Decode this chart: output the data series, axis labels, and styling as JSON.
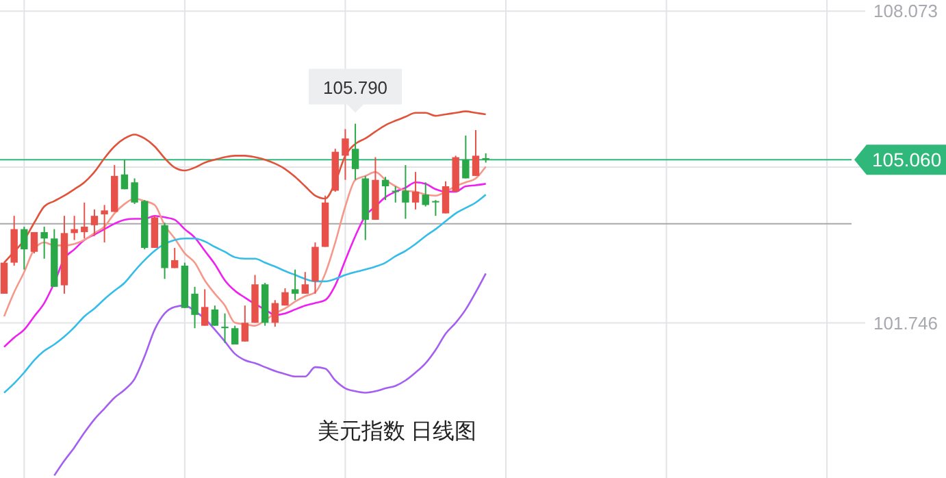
{
  "chart_data": {
    "type": "candlestick",
    "title": "美元指数  日线图",
    "categories": [
      null,
      null,
      null,
      null,
      null,
      null,
      null,
      null,
      null,
      null,
      null,
      null,
      null,
      null,
      null,
      null,
      null,
      null,
      null,
      null,
      null,
      null,
      null,
      null,
      null,
      null,
      null,
      null,
      null,
      null,
      null,
      null,
      null,
      null,
      null,
      null,
      null,
      null,
      null,
      null,
      null,
      null,
      null,
      null,
      null,
      null,
      null,
      null,
      null
    ],
    "ohlc": [
      [
        102.34,
        102.97,
        102.34,
        102.97
      ],
      [
        102.97,
        103.92,
        102.91,
        103.65
      ],
      [
        103.65,
        103.7,
        102.83,
        103.24
      ],
      [
        103.19,
        103.59,
        103.16,
        103.59
      ],
      [
        103.59,
        103.7,
        103.05,
        103.46
      ],
      [
        103.46,
        103.65,
        102.48,
        102.48
      ],
      [
        102.51,
        103.92,
        102.34,
        103.57
      ],
      [
        103.57,
        103.92,
        103.43,
        103.65
      ],
      [
        103.59,
        104.19,
        103.46,
        103.7
      ],
      [
        103.73,
        104.05,
        103.51,
        103.92
      ],
      [
        103.95,
        104.14,
        103.38,
        104.03
      ],
      [
        104.0,
        104.95,
        104.0,
        104.73
      ],
      [
        104.76,
        105.06,
        104.46,
        104.46
      ],
      [
        104.6,
        104.68,
        104.16,
        104.19
      ],
      [
        104.22,
        104.24,
        103.24,
        103.27
      ],
      [
        103.27,
        103.92,
        103.27,
        103.89
      ],
      [
        103.73,
        103.78,
        102.64,
        102.86
      ],
      [
        102.86,
        103.27,
        102.86,
        103.02
      ],
      [
        102.91,
        102.97,
        102.05,
        102.05
      ],
      [
        102.34,
        102.48,
        101.64,
        101.91
      ],
      [
        101.69,
        102.43,
        101.69,
        102.07
      ],
      [
        102.02,
        102.1,
        101.69,
        101.69
      ],
      [
        101.67,
        101.94,
        101.34,
        101.64
      ],
      [
        101.64,
        101.69,
        101.31,
        101.31
      ],
      [
        101.37,
        102.1,
        101.37,
        101.75
      ],
      [
        101.75,
        102.72,
        101.75,
        102.53
      ],
      [
        102.53,
        102.56,
        101.69,
        101.75
      ],
      [
        101.75,
        102.21,
        101.67,
        102.15
      ],
      [
        102.1,
        102.45,
        102.1,
        102.37
      ],
      [
        102.43,
        102.83,
        102.21,
        102.34
      ],
      [
        102.34,
        102.78,
        102.34,
        102.53
      ],
      [
        102.59,
        103.38,
        102.34,
        103.29
      ],
      [
        103.29,
        104.33,
        103.29,
        104.19
      ],
      [
        104.43,
        105.28,
        104.41,
        105.22
      ],
      [
        105.14,
        105.68,
        104.65,
        105.49
      ],
      [
        105.28,
        105.79,
        104.65,
        104.87
      ],
      [
        104.68,
        104.73,
        103.43,
        103.84
      ],
      [
        103.84,
        105.11,
        103.84,
        104.65
      ],
      [
        104.65,
        104.71,
        104.24,
        104.52
      ],
      [
        104.43,
        104.52,
        104.19,
        104.41
      ],
      [
        104.43,
        104.95,
        103.86,
        104.19
      ],
      [
        104.19,
        104.81,
        104.05,
        104.41
      ],
      [
        104.35,
        104.6,
        104.11,
        104.14
      ],
      [
        104.22,
        104.24,
        103.92,
        104.21
      ],
      [
        103.97,
        104.62,
        103.97,
        104.52
      ],
      [
        104.41,
        105.14,
        104.41,
        105.11
      ],
      [
        105.06,
        105.55,
        104.68,
        104.68
      ],
      [
        104.73,
        105.66,
        104.73,
        105.14
      ],
      [
        105.09,
        105.19,
        105.0,
        105.06
      ]
    ],
    "colors": [
      "#e8504a",
      "#e8504a",
      "#2aa847",
      "#e8504a",
      "#2aa847",
      "#2aa847",
      "#e8504a",
      "#e8504a",
      "#e8504a",
      "#e8504a",
      "#e8504a",
      "#e8504a",
      "#2aa847",
      "#2aa847",
      "#2aa847",
      "#e8504a",
      "#2aa847",
      "#e8504a",
      "#2aa847",
      "#2aa847",
      "#e8504a",
      "#2aa847",
      "#2aa847",
      "#2aa847",
      "#e8504a",
      "#e8504a",
      "#2aa847",
      "#e8504a",
      "#e8504a",
      "#2aa847",
      "#e8504a",
      "#e8504a",
      "#e8504a",
      "#e8504a",
      "#e8504a",
      "#2aa847",
      "#2aa847",
      "#e8504a",
      "#2aa847",
      "#2aa847",
      "#2aa847",
      "#e8504a",
      "#2aa847",
      "#2aa847",
      "#e8504a",
      "#e8504a",
      "#2aa847",
      "#e8504a",
      "#2aa847"
    ],
    "series": [
      {
        "type": "line",
        "color": "#e0533a",
        "values": [
          102.97,
          103.19,
          103.43,
          103.78,
          104.11,
          104.22,
          104.33,
          104.46,
          104.6,
          104.81,
          105.09,
          105.33,
          105.49,
          105.57,
          105.49,
          105.33,
          105.09,
          104.9,
          104.84,
          104.9,
          105.0,
          105.06,
          105.11,
          105.14,
          105.14,
          105.11,
          105.06,
          104.98,
          104.87,
          104.71,
          104.52,
          104.33,
          104.27,
          104.6,
          105.14,
          105.38,
          105.49,
          105.63,
          105.76,
          105.85,
          105.93,
          106.01,
          106.01,
          105.95,
          105.98,
          106.01,
          106.04,
          106.01,
          105.98
        ]
      },
      {
        "type": "line",
        "color": "#f01ef0",
        "values": [
          101.26,
          101.45,
          101.61,
          101.88,
          102.15,
          102.56,
          103.05,
          103.24,
          103.43,
          103.54,
          103.65,
          103.76,
          103.84,
          103.86,
          103.86,
          103.92,
          103.89,
          103.84,
          103.65,
          103.48,
          103.21,
          102.94,
          102.61,
          102.4,
          102.26,
          102.13,
          102.02,
          101.91,
          101.94,
          102.02,
          102.1,
          102.15,
          102.21,
          102.51,
          103.02,
          103.51,
          103.92,
          104.11,
          104.3,
          104.41,
          104.49,
          104.6,
          104.57,
          104.46,
          104.41,
          104.41,
          104.52,
          104.54,
          104.57
        ]
      },
      {
        "type": "line",
        "color": "#a45ef2",
        "values": [
          null,
          null,
          null,
          null,
          null,
          98.65,
          98.95,
          99.22,
          99.52,
          99.79,
          100.01,
          100.23,
          100.39,
          100.61,
          101.07,
          101.61,
          101.94,
          102.07,
          102.1,
          101.99,
          101.83,
          101.61,
          101.37,
          101.12,
          100.99,
          100.93,
          100.85,
          100.77,
          100.71,
          100.66,
          100.66,
          100.85,
          100.82,
          100.58,
          100.42,
          100.36,
          100.33,
          100.36,
          100.42,
          100.47,
          100.58,
          100.74,
          100.93,
          101.2,
          101.53,
          101.75,
          102.02,
          102.37,
          102.75
        ]
      },
      {
        "type": "line",
        "color": "#f5988a",
        "values": [
          101.88,
          102.37,
          102.78,
          103.24,
          103.38,
          103.32,
          103.32,
          103.35,
          103.43,
          103.57,
          103.7,
          103.97,
          104.16,
          104.27,
          104.22,
          104.14,
          103.73,
          103.46,
          103.16,
          102.97,
          102.61,
          102.34,
          102.1,
          101.75,
          101.72,
          101.69,
          101.8,
          101.94,
          102.04,
          102.18,
          102.29,
          102.37,
          102.75,
          103.38,
          104.11,
          104.65,
          104.73,
          104.81,
          104.65,
          104.52,
          104.43,
          104.41,
          104.35,
          104.33,
          104.41,
          104.52,
          104.6,
          104.68,
          104.92
        ]
      },
      {
        "type": "line",
        "color": "#33bde8",
        "values": [
          100.33,
          100.52,
          100.74,
          100.99,
          101.18,
          101.31,
          101.47,
          101.66,
          101.88,
          102.04,
          102.23,
          102.4,
          102.56,
          102.8,
          103.02,
          103.21,
          103.35,
          103.43,
          103.46,
          103.46,
          103.4,
          103.29,
          103.19,
          103.08,
          103.05,
          103.05,
          102.97,
          102.89,
          102.8,
          102.72,
          102.64,
          102.59,
          102.59,
          102.64,
          102.72,
          102.78,
          102.83,
          102.89,
          102.97,
          103.1,
          103.21,
          103.35,
          103.51,
          103.65,
          103.81,
          103.97,
          104.08,
          104.19,
          104.35
        ]
      }
    ],
    "ylim": [
      98.6,
      108.3
    ],
    "yticks": [
      108.073,
      {
        "value": 104.91,
        "label": null
      },
      101.746
    ],
    "tick_labels": "y",
    "grid": true,
    "ref_lines": [
      {
        "axis": "y",
        "value": 105.06,
        "label": "105.060",
        "color": "#2fb87a"
      },
      {
        "axis": "y",
        "value": 103.76,
        "color": "#a8a8a8"
      }
    ],
    "annotations": [
      {
        "text": "105.790",
        "y": 105.79
      }
    ]
  }
}
